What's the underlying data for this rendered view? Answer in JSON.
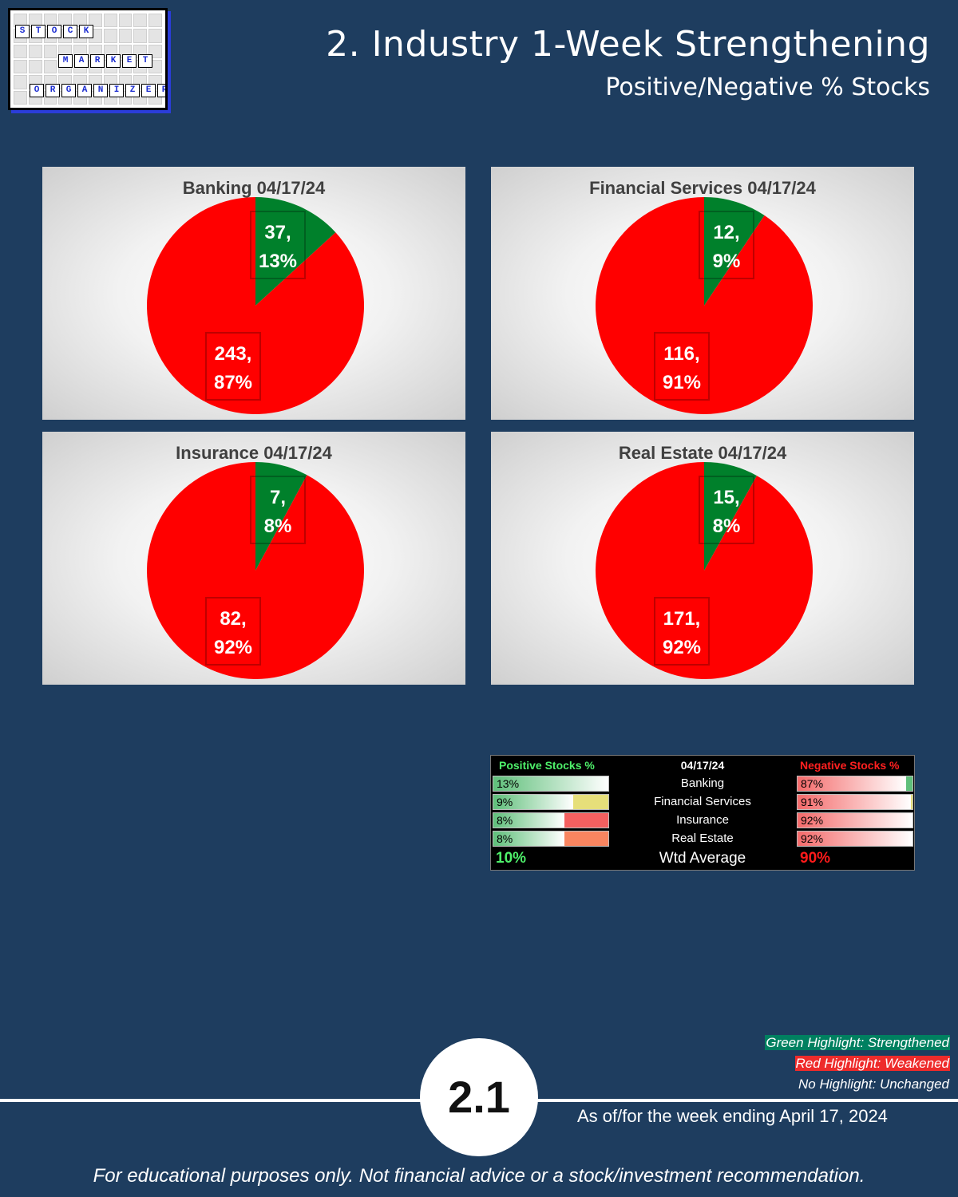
{
  "header": {
    "title": "2. Industry 1-Week Strengthening",
    "subtitle": "Positive/Negative % Stocks"
  },
  "logo": {
    "rows": [
      [
        "S",
        "T",
        "O",
        "C",
        "K"
      ],
      [
        "M",
        "A",
        "R",
        "K",
        "E",
        "T"
      ],
      [
        "O",
        "R",
        "G",
        "A",
        "N",
        "I",
        "Z",
        "E",
        "R"
      ]
    ]
  },
  "colors": {
    "positive": "#00802b",
    "negative": "#ff0000",
    "background": "#1e3d5f"
  },
  "chart_data": [
    {
      "type": "pie",
      "title": "Banking 04/17/24",
      "labels": [
        "Positive",
        "Negative"
      ],
      "values": [
        37,
        243
      ],
      "percents": [
        "13%",
        "87%"
      ],
      "colors": [
        "#00802b",
        "#ff0000"
      ]
    },
    {
      "type": "pie",
      "title": "Financial Services 04/17/24",
      "labels": [
        "Positive",
        "Negative"
      ],
      "values": [
        12,
        116
      ],
      "percents": [
        "9%",
        "91%"
      ],
      "colors": [
        "#00802b",
        "#ff0000"
      ]
    },
    {
      "type": "pie",
      "title": "Insurance 04/17/24",
      "labels": [
        "Positive",
        "Negative"
      ],
      "values": [
        7,
        82
      ],
      "percents": [
        "8%",
        "92%"
      ],
      "colors": [
        "#00802b",
        "#ff0000"
      ]
    },
    {
      "type": "pie",
      "title": "Real Estate 04/17/24",
      "labels": [
        "Positive",
        "Negative"
      ],
      "values": [
        15,
        171
      ],
      "percents": [
        "8%",
        "92%"
      ],
      "colors": [
        "#00802b",
        "#ff0000"
      ]
    },
    {
      "type": "table",
      "headers": {
        "positive": "Positive Stocks %",
        "date": "04/17/24",
        "negative": "Negative Stocks %"
      },
      "rows": [
        {
          "industry": "Banking",
          "positive": "13%",
          "negative": "87%",
          "positive_value": 13,
          "negative_value": 87,
          "highlight": "none"
        },
        {
          "industry": "Financial Services",
          "positive": "9%",
          "negative": "91%",
          "positive_value": 9,
          "negative_value": 91,
          "highlight": "#e6df7a"
        },
        {
          "industry": "Insurance",
          "positive": "8%",
          "negative": "92%",
          "positive_value": 8,
          "negative_value": 92,
          "highlight": "#f46060"
        },
        {
          "industry": "Real Estate",
          "positive": "8%",
          "negative": "92%",
          "positive_value": 8,
          "negative_value": 92,
          "highlight": "#f88560"
        }
      ],
      "average": {
        "label": "Wtd Average",
        "positive": "10%",
        "negative": "90%"
      }
    }
  ],
  "legend": {
    "green": "Green Highlight: Strengthened",
    "red": "Red Highlight: Weakened",
    "none": "No Highlight: Unchanged"
  },
  "footer": {
    "page_number": "2.1",
    "as_of": "As of/for the week ending April 17, 2024",
    "disclaimer": "For educational purposes only. Not financial advice or a stock/investment recommendation."
  }
}
